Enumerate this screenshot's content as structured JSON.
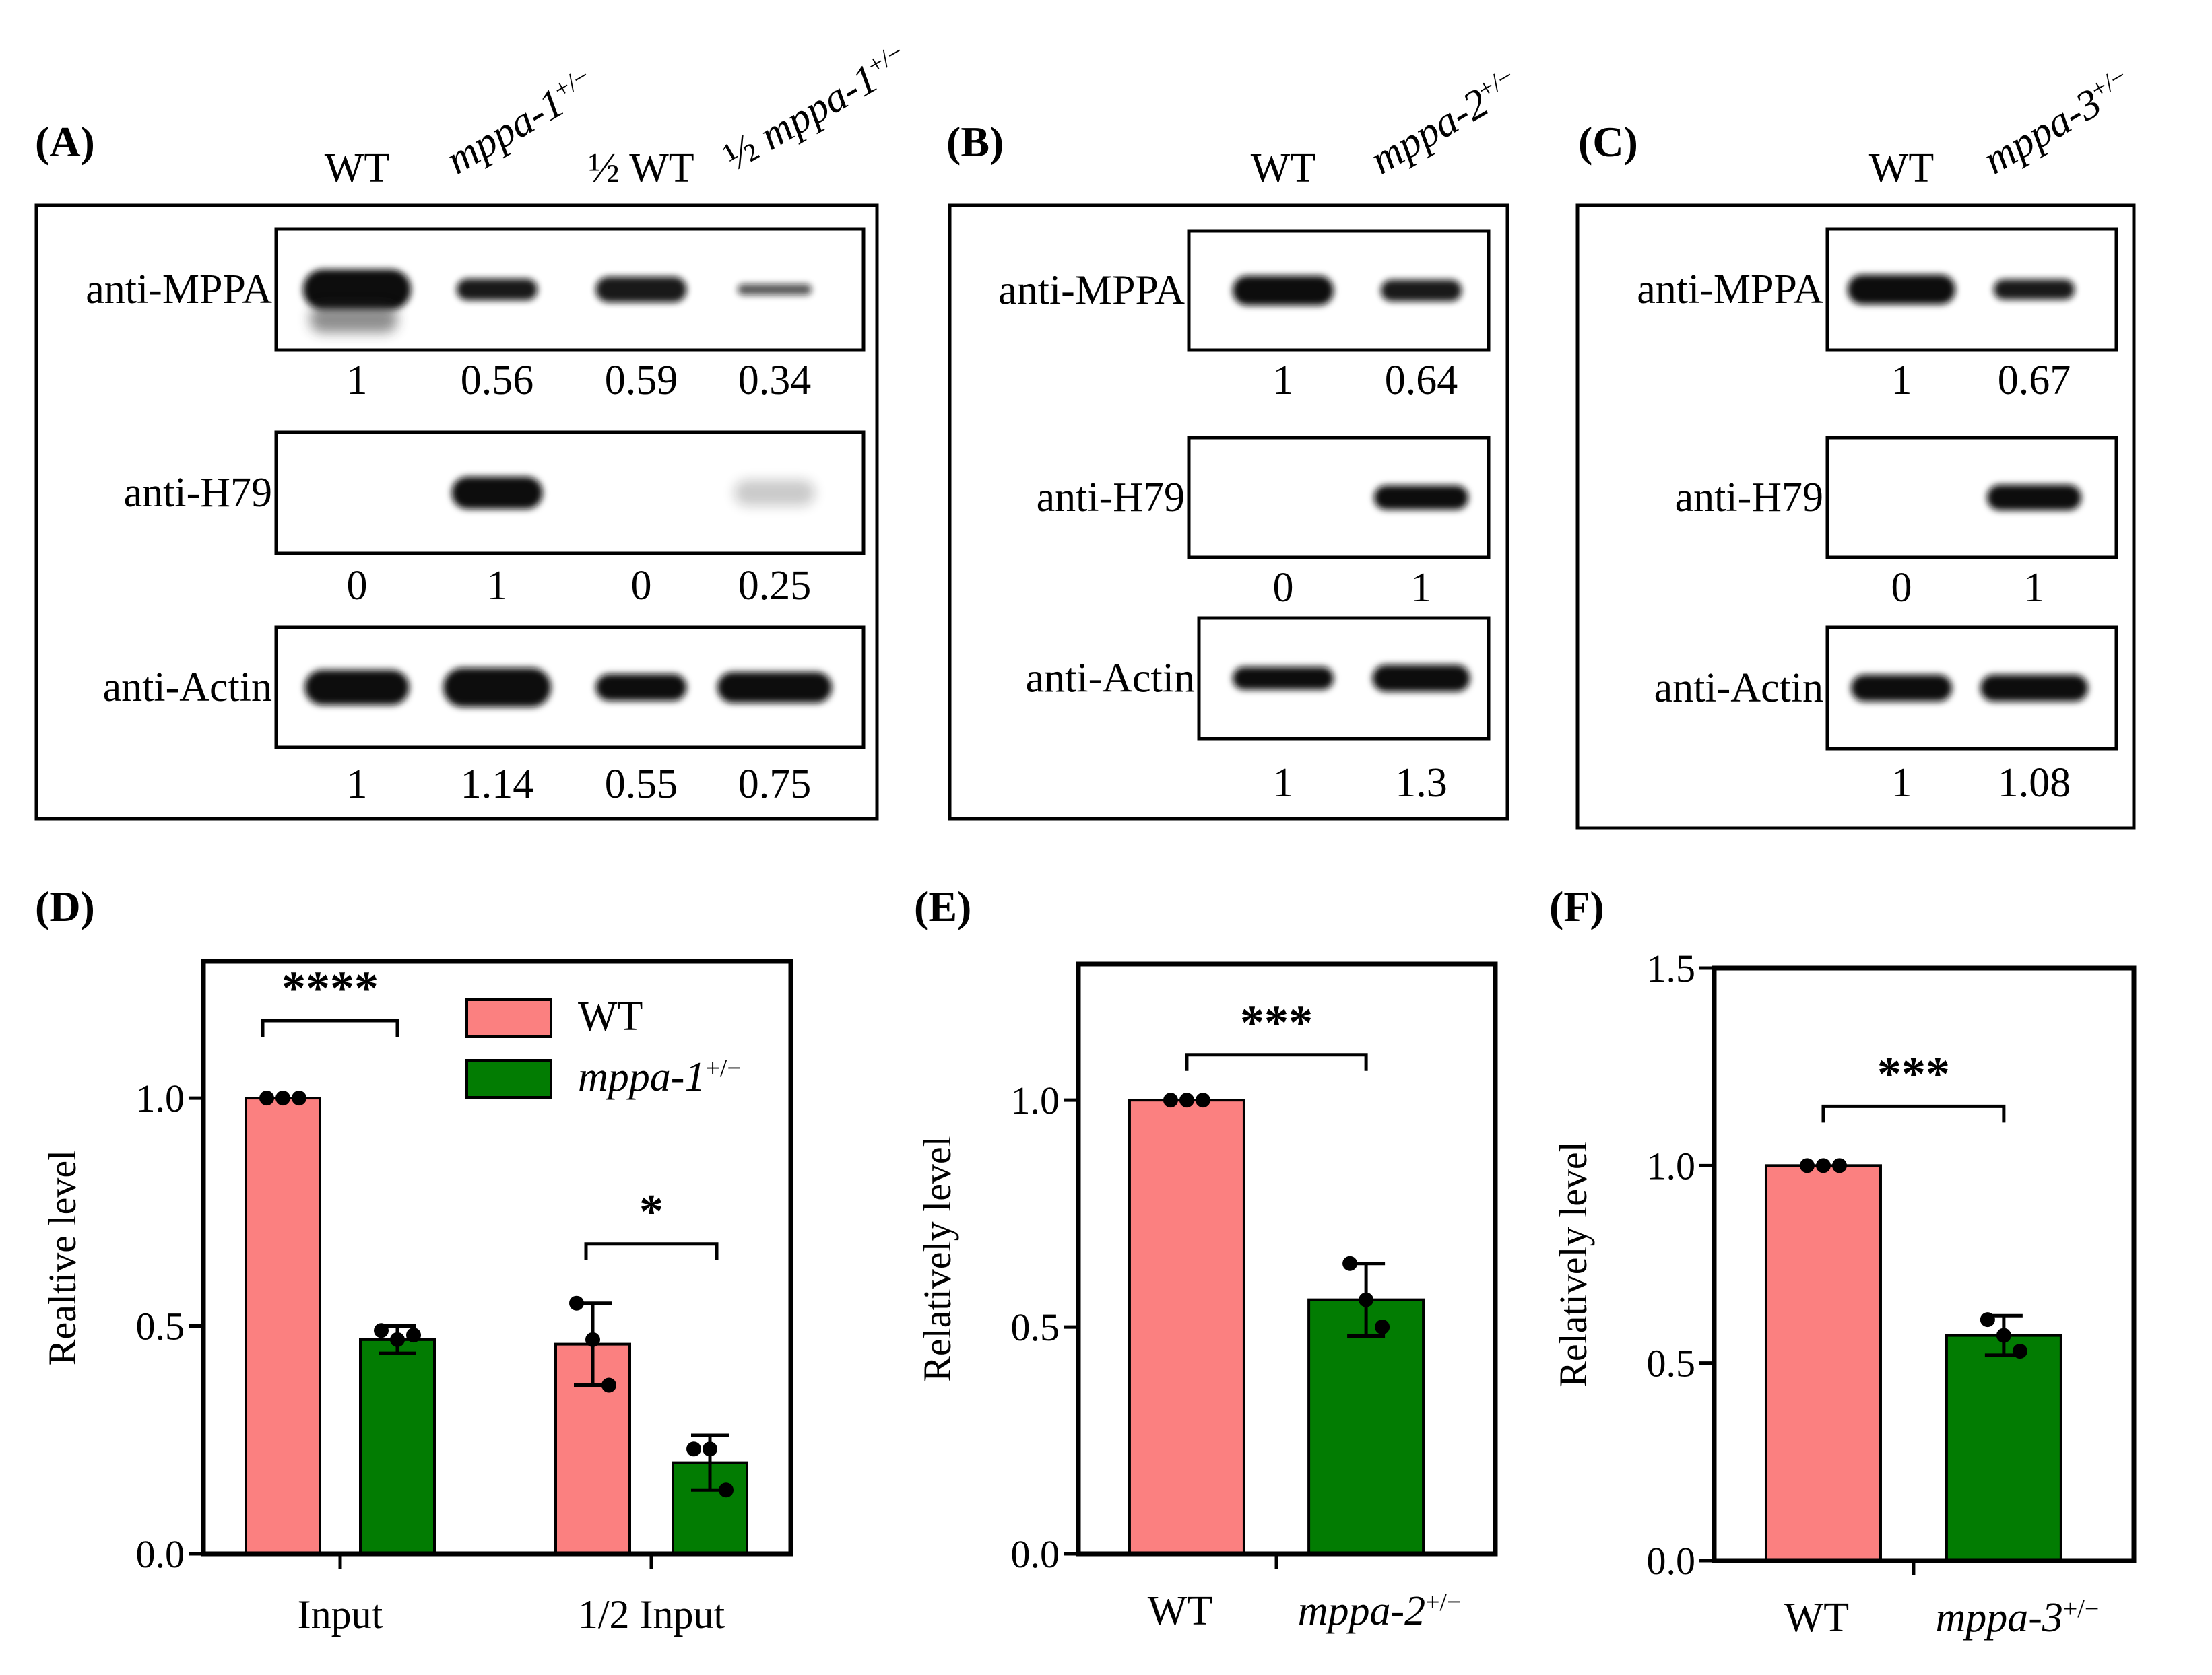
{
  "panels": {
    "A": {
      "letter": "(A)",
      "lanes": [
        {
          "text": "WT",
          "italic": false
        },
        {
          "text": "mppa-1",
          "sup": "+/−",
          "italic": true
        },
        {
          "text": "½ WT",
          "italic": false
        },
        {
          "prefix": "½",
          "text": "mppa-1",
          "sup": "+/−",
          "italic": true
        }
      ],
      "blots": [
        {
          "label": "anti-MPPA",
          "values": [
            "1",
            "0.56",
            "0.59",
            "0.34"
          ]
        },
        {
          "label": "anti-H79",
          "values": [
            "0",
            "1",
            "0",
            "0.25"
          ]
        },
        {
          "label": "anti-Actin",
          "values": [
            "1",
            "1.14",
            "0.55",
            "0.75"
          ]
        }
      ]
    },
    "B": {
      "letter": "(B)",
      "lanes": [
        {
          "text": "WT",
          "italic": false
        },
        {
          "text": "mppa-2",
          "sup": "+/−",
          "italic": true
        }
      ],
      "blots": [
        {
          "label": "anti-MPPA",
          "values": [
            "1",
            "0.64"
          ]
        },
        {
          "label": "anti-H79",
          "values": [
            "0",
            "1"
          ]
        },
        {
          "label": "anti-Actin",
          "values": [
            "1",
            "1.3"
          ]
        }
      ]
    },
    "C": {
      "letter": "(C)",
      "lanes": [
        {
          "text": "WT",
          "italic": false
        },
        {
          "text": "mppa-3",
          "sup": "+/−",
          "italic": true
        }
      ],
      "blots": [
        {
          "label": "anti-MPPA",
          "values": [
            "1",
            "0.67"
          ]
        },
        {
          "label": "anti-H79",
          "values": [
            "0",
            "1"
          ]
        },
        {
          "label": "anti-Actin",
          "values": [
            "1",
            "1.08"
          ]
        }
      ]
    }
  },
  "colors": {
    "wt": "#fb8080",
    "mut": "#027c02",
    "frame": "#000000"
  },
  "chart_data": [
    {
      "panel": "(D)",
      "type": "bar",
      "ylabel": "Realtive level",
      "ylim": [
        0,
        1.3
      ],
      "yticks": [
        "0.0",
        "0.5",
        "1.0"
      ],
      "categories": [
        "Input",
        "1/2 Input"
      ],
      "legend": [
        {
          "name": "WT"
        },
        {
          "name": "mppa-1",
          "sup": "+/−"
        }
      ],
      "series": [
        {
          "name": "WT",
          "values": [
            1.0,
            0.46
          ],
          "err": [
            0,
            0.09
          ],
          "points": [
            [
              1.0,
              1.0,
              1.0
            ],
            [
              0.55,
              0.47,
              0.37
            ]
          ]
        },
        {
          "name": "mppa-1+/−",
          "values": [
            0.47,
            0.2
          ],
          "err": [
            0.03,
            0.06
          ],
          "points": [
            [
              0.49,
              0.47,
              0.48
            ],
            [
              0.23,
              0.23,
              0.14
            ]
          ]
        }
      ],
      "significance": [
        "****",
        "*"
      ]
    },
    {
      "panel": "(E)",
      "type": "bar",
      "ylabel": "Relatively level",
      "ylim": [
        0,
        1.3
      ],
      "yticks": [
        "0.0",
        "0.5",
        "1.0"
      ],
      "categories": [
        {
          "text": "WT"
        },
        {
          "text": "mppa-2",
          "sup": "+/−"
        }
      ],
      "values": [
        1.0,
        0.56
      ],
      "err": [
        0,
        0.08
      ],
      "points": [
        [
          1.0,
          1.0,
          1.0
        ],
        [
          0.64,
          0.56,
          0.5
        ]
      ],
      "significance": [
        "***"
      ]
    },
    {
      "panel": "(F)",
      "type": "bar",
      "ylabel": "Relatively level",
      "ylim": [
        0,
        1.5
      ],
      "yticks": [
        "0.0",
        "0.5",
        "1.0",
        "1.5"
      ],
      "categories": [
        {
          "text": "WT"
        },
        {
          "text": "mppa-3",
          "sup": "+/−"
        }
      ],
      "values": [
        1.0,
        0.57
      ],
      "err": [
        0,
        0.05
      ],
      "points": [
        [
          1.0,
          1.0,
          1.0
        ],
        [
          0.61,
          0.57,
          0.53
        ]
      ],
      "significance": [
        "***"
      ]
    }
  ]
}
